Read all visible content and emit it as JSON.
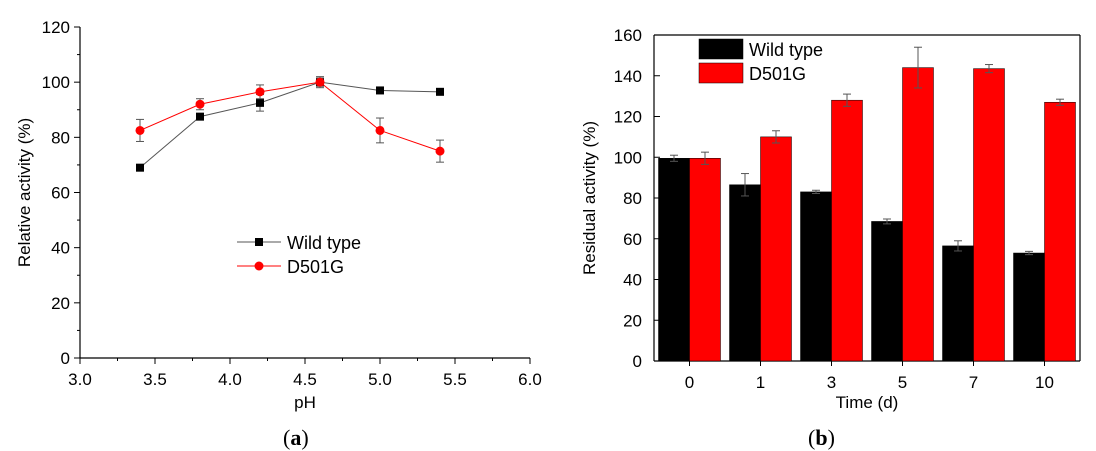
{
  "chart_data": [
    {
      "type": "line",
      "panel_label": "a",
      "xlabel": "pH",
      "ylabel": "Relative activity (%)",
      "xlim": [
        3.0,
        6.0
      ],
      "ylim": [
        0,
        120
      ],
      "xticks": [
        3.0,
        3.5,
        4.0,
        4.5,
        5.0,
        5.5,
        6.0
      ],
      "xtick_labels": [
        "3.0",
        "3.5",
        "4.0",
        "4.5",
        "5.0",
        "5.5",
        "6.0"
      ],
      "yticks": [
        0,
        20,
        40,
        60,
        80,
        100,
        120
      ],
      "ytick_labels": [
        "0",
        "20",
        "40",
        "60",
        "80",
        "100",
        "120"
      ],
      "grid": false,
      "legend_position": "center-bottom",
      "series": [
        {
          "name": "Wild type",
          "color": "#000000",
          "line_color": "#555555",
          "marker": "square",
          "x": [
            3.4,
            3.8,
            4.2,
            4.6,
            5.0,
            5.4
          ],
          "y": [
            69,
            87.5,
            92.5,
            100,
            97,
            96.5
          ],
          "err": [
            0,
            0,
            3,
            2,
            0,
            0
          ]
        },
        {
          "name": "D501G",
          "color": "#ff0000",
          "line_color": "#ff0000",
          "marker": "circle",
          "x": [
            3.4,
            3.8,
            4.2,
            4.6,
            5.0,
            5.4
          ],
          "y": [
            82.5,
            92,
            96.5,
            100,
            82.5,
            75
          ],
          "err": [
            4,
            2,
            2.5,
            1.5,
            4.5,
            4
          ]
        }
      ]
    },
    {
      "type": "bar",
      "panel_label": "b",
      "xlabel": "Time (d)",
      "ylabel": "Residual activity (%)",
      "categories": [
        "0",
        "1",
        "3",
        "5",
        "7",
        "10"
      ],
      "ylim": [
        0,
        160
      ],
      "yticks": [
        0,
        20,
        40,
        60,
        80,
        100,
        120,
        140,
        160
      ],
      "ytick_labels": [
        "0",
        "20",
        "40",
        "60",
        "80",
        "100",
        "120",
        "140",
        "160"
      ],
      "grid": false,
      "legend_position": "top-left",
      "series": [
        {
          "name": "Wild type",
          "color": "#000000",
          "values": [
            99.5,
            86.5,
            83,
            68.5,
            56.5,
            53
          ],
          "err": [
            1.5,
            5.5,
            0.8,
            1.2,
            2.5,
            0.8
          ]
        },
        {
          "name": "D501G",
          "color": "#ff0000",
          "values": [
            99.5,
            110,
            128,
            144,
            143.5,
            127
          ],
          "err": [
            3,
            3,
            3,
            10,
            2,
            1.5
          ]
        }
      ]
    }
  ]
}
